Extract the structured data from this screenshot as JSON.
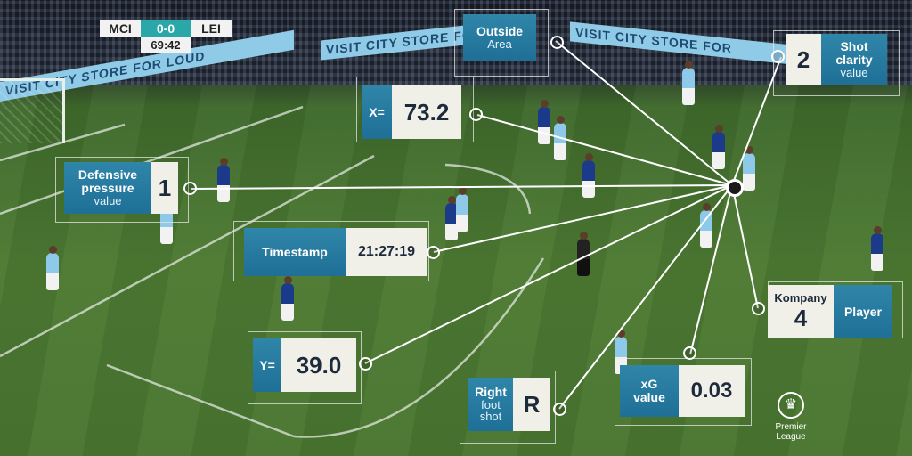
{
  "scoreboard": {
    "home": "MCI",
    "score": "0-0",
    "away": "LEI",
    "clock": "69:42"
  },
  "ad_boards": [
    "VISIT CITY STORE FOR LOUD",
    "VISIT CITY STORE FOR",
    "VISIT CITY STORE FOR"
  ],
  "cards": {
    "outside_area": {
      "line1": "Outside",
      "line2": "Area"
    },
    "shot_clarity": {
      "value": "2",
      "line1": "Shot",
      "line2": "clarity",
      "line3": "value"
    },
    "x_coord": {
      "label": "X=",
      "value": "73.2"
    },
    "defensive_pressure": {
      "line1": "Defensive",
      "line2": "pressure",
      "line3": "value",
      "value": "1"
    },
    "timestamp": {
      "label": "Timestamp",
      "value": "21:27:19"
    },
    "player": {
      "name": "Kompany",
      "number": "4",
      "label": "Player"
    },
    "y_coord": {
      "label": "Y=",
      "value": "39.0"
    },
    "foot": {
      "line1": "Right",
      "line2": "foot",
      "line3": "shot",
      "value": "R"
    },
    "xg": {
      "line1": "xG",
      "line2": "value",
      "value": "0.03"
    }
  },
  "logo": {
    "line1": "Premier",
    "line2": "League"
  },
  "colors": {
    "label_blue": "#1f6f96",
    "value_bg": "#f0efe8",
    "score_teal": "#2aa7a9"
  }
}
